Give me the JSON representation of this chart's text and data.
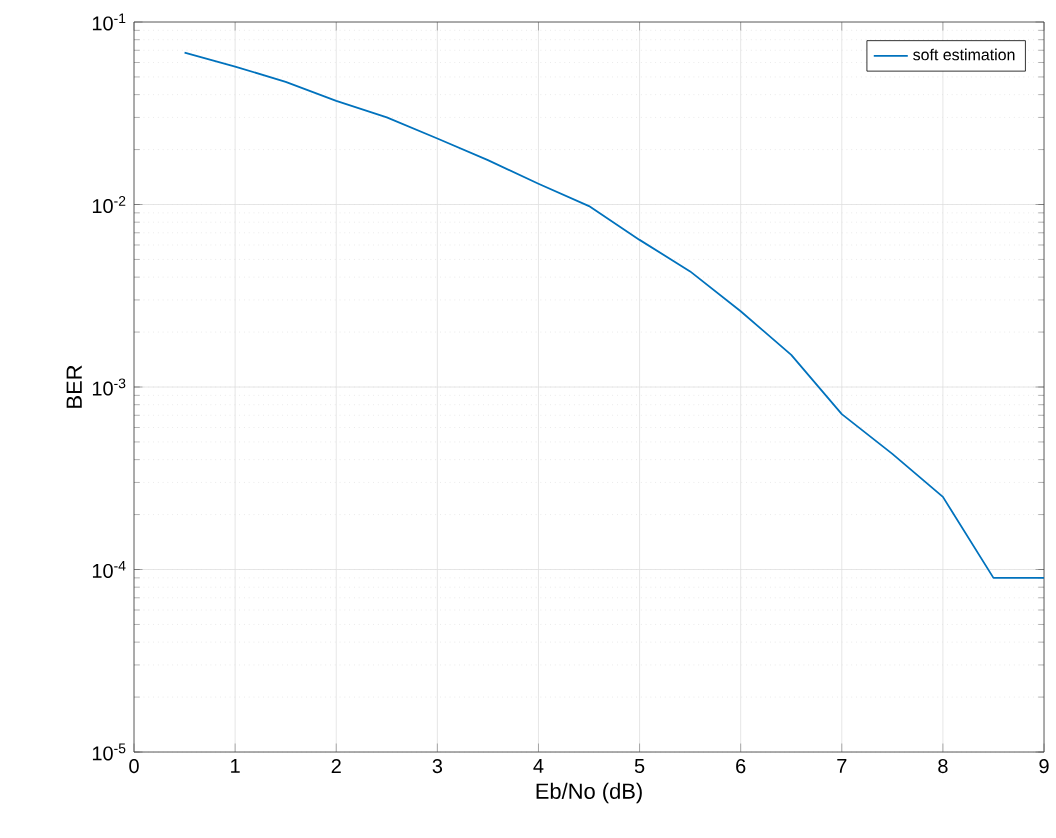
{
  "chart_data": {
    "type": "line",
    "xlabel": "Eb/No (dB)",
    "ylabel": "BER",
    "log": "y",
    "grid": true,
    "legend": "top right",
    "xlim": [
      0,
      9
    ],
    "xticks": [
      0,
      1,
      2,
      3,
      4,
      5,
      6,
      7,
      8,
      9
    ],
    "ylim": [
      1e-05,
      0.1
    ],
    "yticks": [
      {
        "value": 1e-05,
        "label": "10$^{-5}$"
      },
      {
        "value": 0.0001,
        "label": "10$^{-4}$"
      },
      {
        "value": 0.001,
        "label": "10$^{-3}$"
      },
      {
        "value": 0.01,
        "label": "10$^{-2}$"
      },
      {
        "value": 0.1,
        "label": "10$^{-1}$"
      }
    ],
    "x": [
      0.5,
      1,
      1.5,
      2,
      2.5,
      3,
      3.5,
      4,
      4.5,
      5,
      5.5,
      6,
      6.5,
      7,
      7.5,
      8,
      8.5,
      9
    ],
    "series": [
      {
        "name": "soft estimation",
        "color": "#0072bd",
        "values": [
          0.068,
          0.057,
          0.047,
          0.037,
          0.03,
          0.023,
          0.0175,
          0.013,
          0.0098,
          0.0064,
          0.0043,
          0.0026,
          0.0015,
          0.00071,
          0.00043,
          0.00025,
          9e-05,
          9e-05
        ]
      }
    ]
  }
}
